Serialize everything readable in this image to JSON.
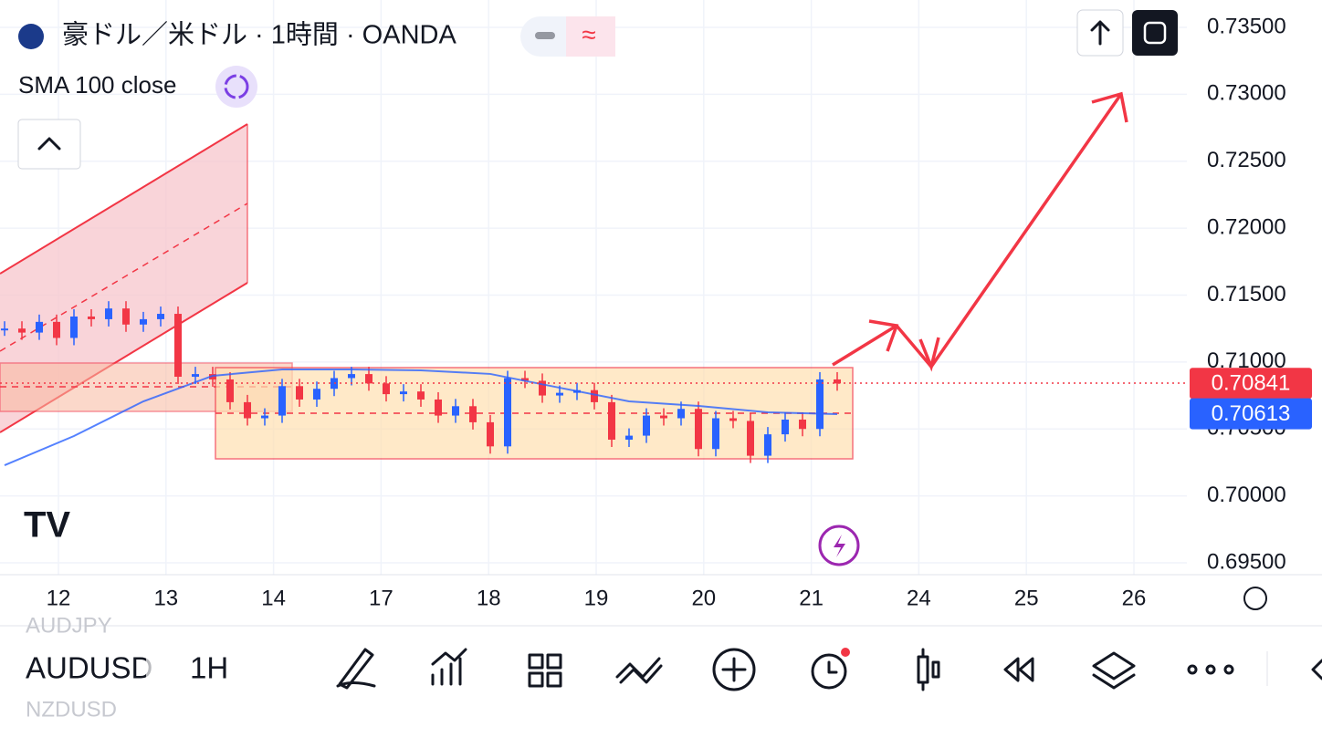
{
  "header": {
    "title": "豪ドル／米ドル · 1時間 · OANDA",
    "indicator": "SMA 100 close"
  },
  "chart_data": {
    "type": "candlestick",
    "closes": [
      0.7125,
      0.7122,
      0.713,
      0.7118,
      0.7134,
      0.7132,
      0.714,
      0.7128,
      0.7132,
      0.7136,
      0.7089,
      0.7091,
      0.7087,
      0.707,
      0.7058,
      0.706,
      0.7082,
      0.7072,
      0.708,
      0.7088,
      0.7091,
      0.7084,
      0.7076,
      0.7078,
      0.7072,
      0.706,
      0.7067,
      0.7055,
      0.7037,
      0.7088,
      0.7086,
      0.7075,
      0.7077,
      0.7079,
      0.707,
      0.7042,
      0.7045,
      0.706,
      0.7058,
      0.7065,
      0.7035,
      0.7058,
      0.7056,
      0.703,
      0.7046,
      0.7057,
      0.705,
      0.7087,
      0.7084
    ],
    "sma": [
      0.70229,
      0.70447,
      0.70706,
      0.70897,
      0.70945,
      0.70945,
      0.70938,
      0.70911,
      0.70808,
      0.70706,
      0.70672,
      0.70624,
      0.70611
    ],
    "up_color": "#2962ff",
    "down_color": "#f23645",
    "categories": [
      "12",
      "13",
      "14",
      "17",
      "18",
      "19",
      "20",
      "21",
      "24",
      "25",
      "26"
    ],
    "ylim": [
      0.695,
      0.735
    ],
    "yticks": [
      {
        "value": 0.735,
        "label": "0.73500"
      },
      {
        "value": 0.73,
        "label": "0.73000"
      },
      {
        "value": 0.725,
        "label": "0.72500"
      },
      {
        "value": 0.72,
        "label": "0.72000"
      },
      {
        "value": 0.715,
        "label": "0.71500"
      },
      {
        "value": 0.71,
        "label": "0.71000"
      },
      {
        "value": 0.705,
        "label": "0.70500"
      },
      {
        "value": 0.7,
        "label": "0.70000"
      },
      {
        "value": 0.695,
        "label": "0.69500"
      }
    ],
    "last_price": {
      "value": 0.70841,
      "label": "0.70841"
    },
    "sma_price": {
      "value": 0.70613,
      "label": "0.70613"
    },
    "grid": true
  },
  "toolbar": {
    "symbol": "AUDUSD",
    "interval": "1H",
    "prev_symbol": "AUDJPY",
    "next_symbol": "NZDUSD"
  }
}
